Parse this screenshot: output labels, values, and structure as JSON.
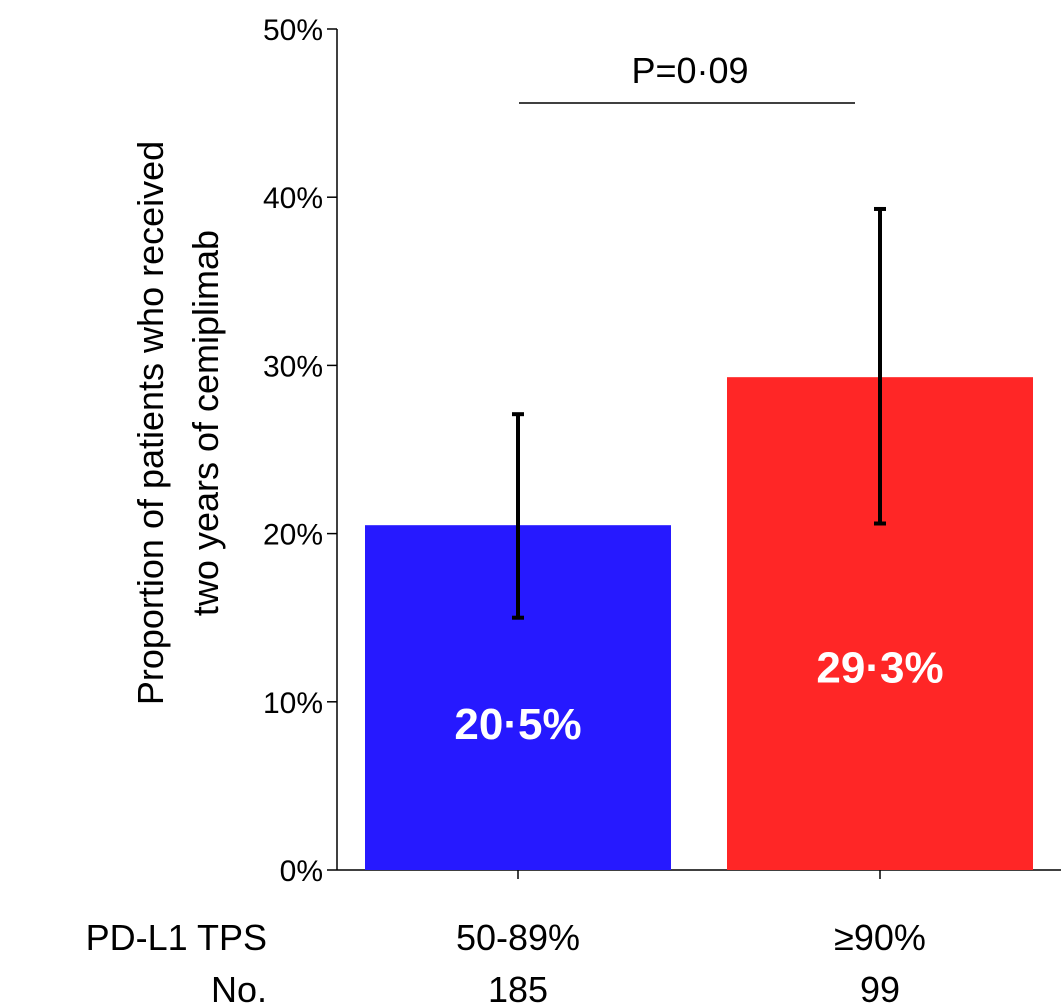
{
  "chart_data": {
    "type": "bar",
    "ylabel_lines": [
      "Proportion of patients who received",
      "two years of cemiplimab"
    ],
    "y_ticks": [
      "0%",
      "10%",
      "20%",
      "30%",
      "40%",
      "50%"
    ],
    "ylim": [
      0,
      50
    ],
    "grid": false,
    "bars": [
      {
        "category": "50-89%",
        "value": 20.5,
        "label": "20·5%",
        "ci_low": 15.0,
        "ci_high": 27.1,
        "n": "185",
        "color": "#2619FF"
      },
      {
        "category": "≥90%",
        "value": 29.3,
        "label": "29·3%",
        "ci_low": 20.6,
        "ci_high": 39.3,
        "n": "99",
        "color": "#FF2626"
      }
    ],
    "pvalue_label": "P=0·09",
    "row_labels": {
      "category_row": "PD-L1 TPS",
      "n_row": "No."
    }
  }
}
